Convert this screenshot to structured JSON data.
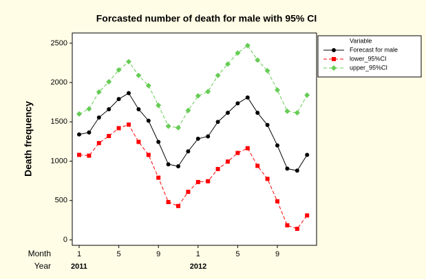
{
  "chart_data": {
    "type": "line",
    "title": "Forcasted number of death for male with 95%  CI",
    "y_label": "Death frequency",
    "x_row_labels": [
      "Month",
      "Year"
    ],
    "categories": [
      "1",
      null,
      null,
      null,
      "5",
      null,
      null,
      null,
      "9",
      null,
      null,
      null,
      "1",
      null,
      null,
      null,
      "5",
      null,
      null,
      null,
      "9",
      null,
      null,
      null
    ],
    "years": [
      "2011",
      null,
      null,
      null,
      null,
      null,
      null,
      null,
      null,
      null,
      null,
      null,
      "2012",
      null,
      null,
      null,
      null,
      null,
      null,
      null,
      null,
      null,
      null,
      null
    ],
    "legend_title": "Variable",
    "legend": "upper-right-outside",
    "series": [
      {
        "name": "Forecast for male",
        "color": "#000000",
        "marker": "circle",
        "dash": false,
        "values": [
          1340,
          1365,
          1555,
          1660,
          1790,
          1865,
          1660,
          1515,
          1245,
          960,
          935,
          1125,
          1285,
          1315,
          1500,
          1615,
          1735,
          1810,
          1615,
          1460,
          1200,
          905,
          880,
          1080
        ]
      },
      {
        "name": "lower_95%CI",
        "color": "#ff0000",
        "marker": "square",
        "dash": true,
        "values": [
          1080,
          1070,
          1230,
          1320,
          1420,
          1465,
          1245,
          1080,
          790,
          480,
          430,
          610,
          735,
          745,
          900,
          995,
          1105,
          1165,
          940,
          775,
          490,
          185,
          140,
          310
        ]
      },
      {
        "name": "upper_95%CI",
        "color": "#66cc55",
        "marker": "diamond",
        "dash": true,
        "values": [
          1600,
          1665,
          1880,
          2010,
          2160,
          2265,
          2090,
          1960,
          1710,
          1445,
          1425,
          1645,
          1830,
          1885,
          2090,
          2235,
          2375,
          2470,
          2285,
          2150,
          1905,
          1635,
          1615,
          1840
        ]
      }
    ],
    "ylim": [
      -70,
      2630
    ],
    "yticks": [
      0,
      500,
      1000,
      1500,
      2000,
      2500
    ]
  }
}
